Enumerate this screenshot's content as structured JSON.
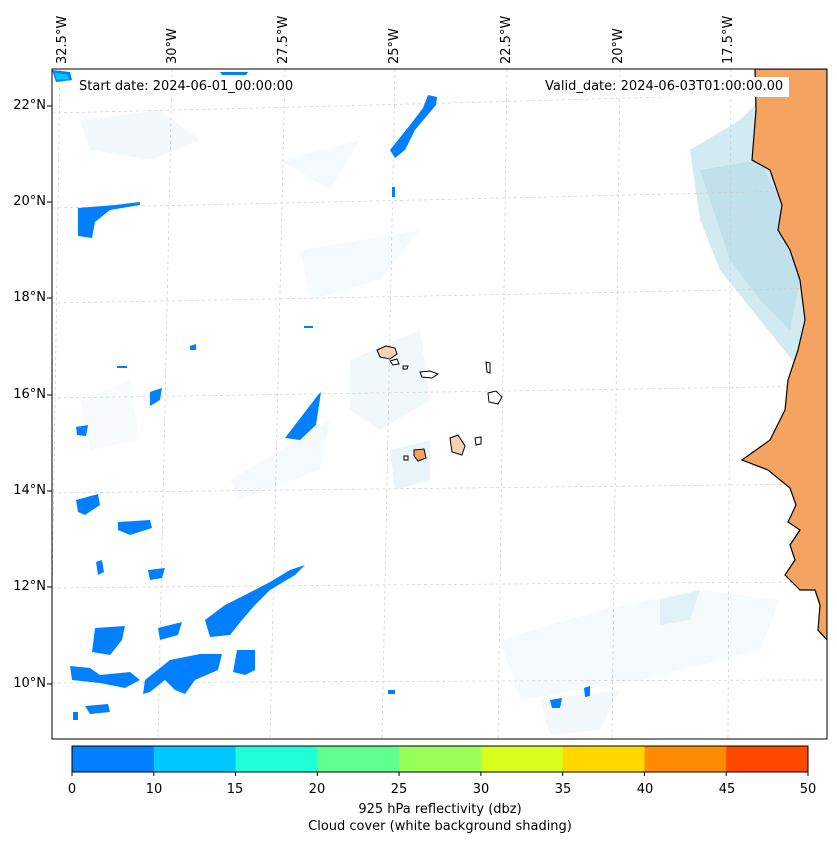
{
  "header": {
    "start_date": "Start date: 2024-06-01_00:00:00",
    "valid_date": "Valid_date: 2024-06-03T01:00:00.00"
  },
  "map": {
    "lat_labels": [
      "22°N",
      "20°N",
      "18°N",
      "16°N",
      "14°N",
      "12°N",
      "10°N"
    ],
    "lon_labels": [
      "32.5°W",
      "30°W",
      "27.5°W",
      "25°W",
      "22.5°W",
      "20°W",
      "17.5°W"
    ],
    "colors": {
      "land": "#f4a460",
      "islands": "#f6d2b0",
      "cloud": "#add8e6",
      "reflectivity_0_10": "#0080ff",
      "coastline": "#000000"
    }
  },
  "colorbar": {
    "ticks": [
      "0",
      "10",
      "15",
      "20",
      "25",
      "30",
      "35",
      "40",
      "45",
      "50"
    ],
    "colors": [
      "#0080ff",
      "#00c8ff",
      "#20ffd8",
      "#60ff90",
      "#98ff58",
      "#d8ff20",
      "#ffd800",
      "#ff8c00",
      "#ff4800"
    ],
    "label_line1": "925 hPa reflectivity (dbz)",
    "label_line2": "Cloud cover (white background shading)"
  }
}
